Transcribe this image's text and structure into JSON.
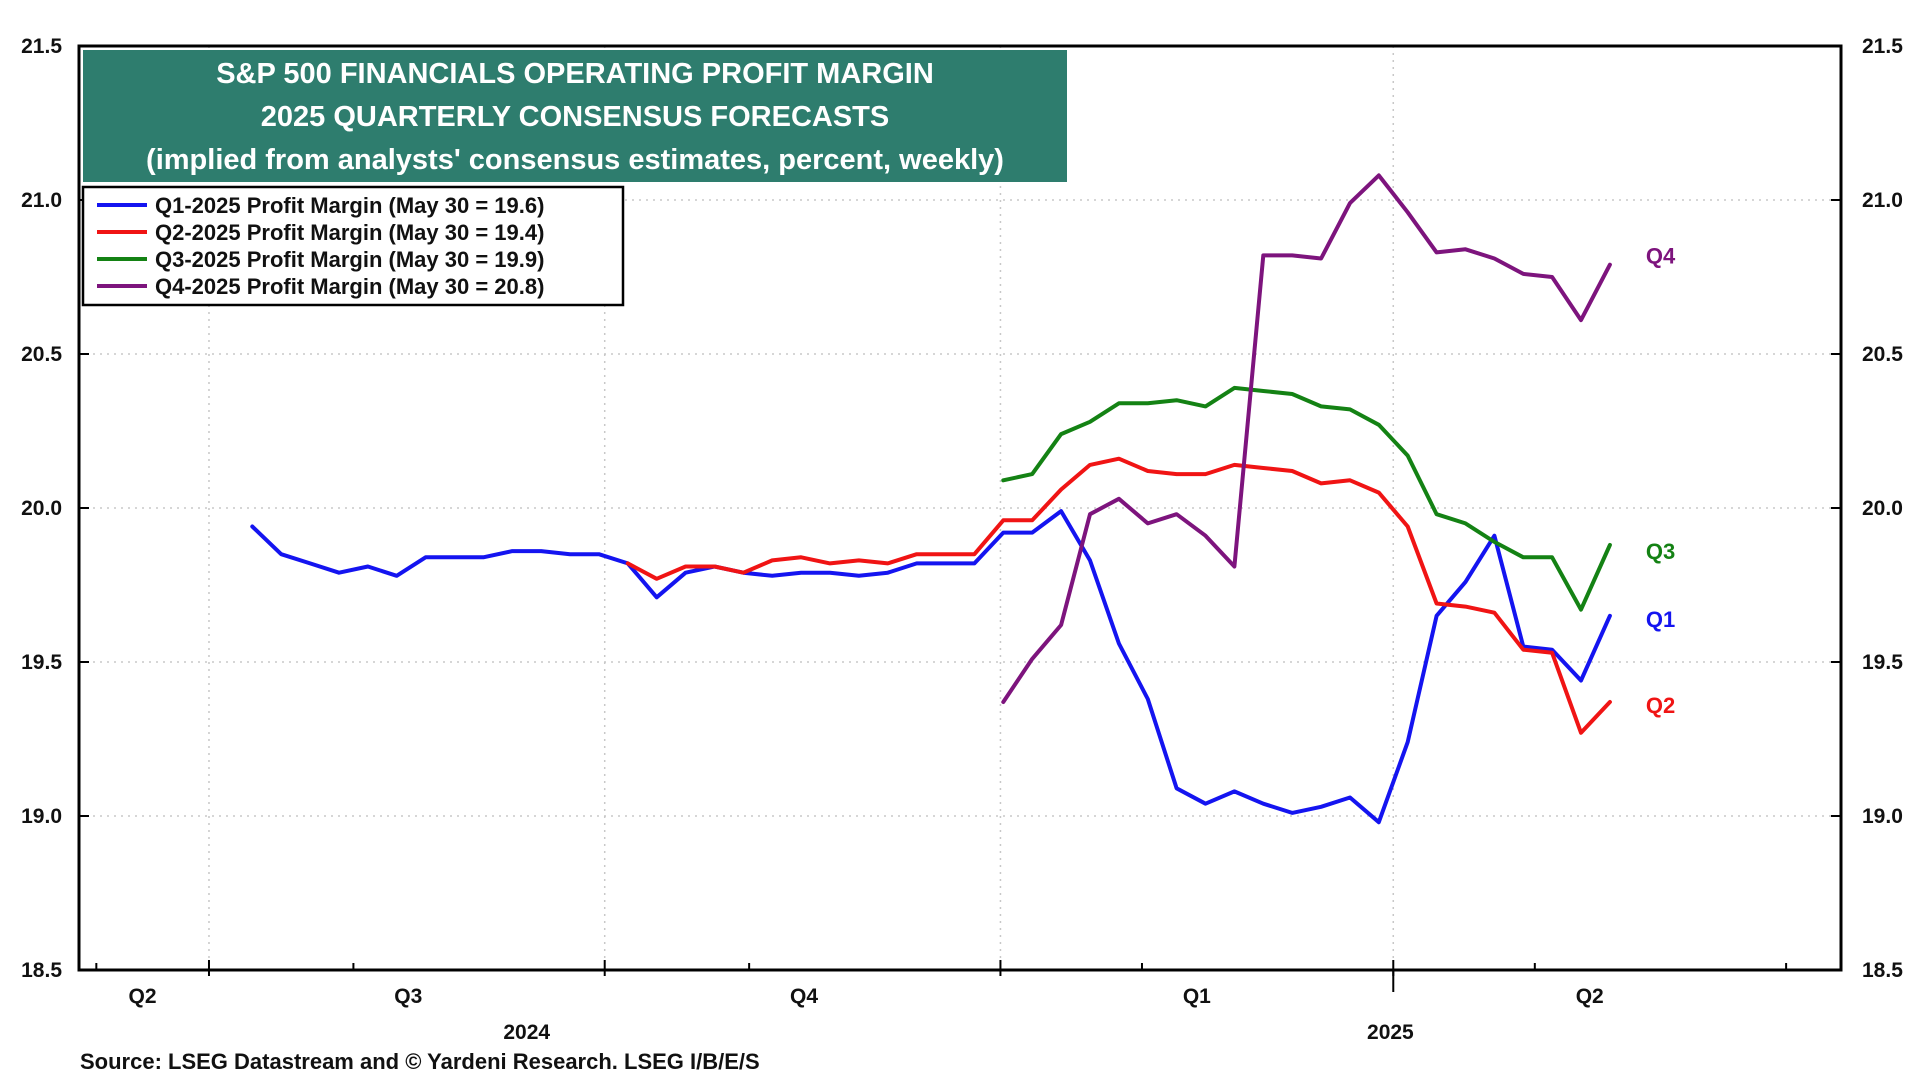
{
  "chart_data": {
    "type": "line",
    "title_lines": [
      "S&P 500 FINANCIALS OPERATING PROFIT MARGIN",
      "2025 QUARTERLY CONSENSUS FORECASTS",
      "(implied from analysts' consensus estimates, percent, weekly)"
    ],
    "title_bg_color": "#2e7d6e",
    "ylim": [
      18.5,
      21.5
    ],
    "y_ticks": [
      "21.5",
      "21.0",
      "20.5",
      "20.0",
      "19.5",
      "19.0",
      "18.5"
    ],
    "y_tick_values": [
      21.5,
      21.0,
      20.5,
      20.0,
      19.5,
      19.0,
      18.5
    ],
    "x_range": [
      0,
      61
    ],
    "quarter_labels": [
      {
        "label": "Q2",
        "pos": 2.2
      },
      {
        "label": "Q3",
        "pos": 11.4
      },
      {
        "label": "Q4",
        "pos": 25.1
      },
      {
        "label": "Q1",
        "pos": 38.7
      },
      {
        "label": "Q2",
        "pos": 52.3
      }
    ],
    "quarter_boundaries": [
      4.5,
      18.2,
      31.9,
      45.5
    ],
    "year_labels": [
      {
        "label": "2024",
        "pos": 15.5
      },
      {
        "label": "2025",
        "pos": 45.4
      }
    ],
    "year_boundary": 45.5,
    "minor_ticks": [
      0.6,
      9.5,
      23.2,
      36.8,
      50.4,
      59.1
    ],
    "series": [
      {
        "name": "Q1-2025 Profit Margin (May 30 = 19.6)",
        "short": "Q1",
        "color": "#1414f0",
        "start": 6,
        "values": [
          19.94,
          19.85,
          19.82,
          19.79,
          19.81,
          19.78,
          19.84,
          19.84,
          19.84,
          19.86,
          19.86,
          19.85,
          19.85,
          19.82,
          19.71,
          19.79,
          19.81,
          19.79,
          19.78,
          19.79,
          19.79,
          19.78,
          19.79,
          19.82,
          19.82,
          19.82,
          19.92,
          19.92,
          19.99,
          19.83,
          19.56,
          19.38,
          19.09,
          19.04,
          19.08,
          19.04,
          19.01,
          19.03,
          19.06,
          18.98,
          19.24,
          19.65,
          19.76,
          19.91,
          19.55,
          19.54,
          19.44,
          19.65
        ]
      },
      {
        "name": "Q2-2025 Profit Margin (May 30 = 19.4)",
        "short": "Q2",
        "color": "#f01414",
        "start": 19,
        "values": [
          19.82,
          19.77,
          19.81,
          19.81,
          19.79,
          19.83,
          19.84,
          19.82,
          19.83,
          19.82,
          19.85,
          19.85,
          19.85,
          19.96,
          19.96,
          20.06,
          20.14,
          20.16,
          20.12,
          20.11,
          20.11,
          20.14,
          20.13,
          20.12,
          20.08,
          20.09,
          20.05,
          19.94,
          19.69,
          19.68,
          19.66,
          19.54,
          19.53,
          19.27,
          19.37
        ]
      },
      {
        "name": "Q3-2025 Profit Margin (May 30 = 19.9)",
        "short": "Q3",
        "color": "#148214",
        "start": 32,
        "values": [
          20.09,
          20.11,
          20.24,
          20.28,
          20.34,
          20.34,
          20.35,
          20.33,
          20.39,
          20.38,
          20.37,
          20.33,
          20.32,
          20.27,
          20.17,
          19.98,
          19.95,
          19.89,
          19.84,
          19.84,
          19.67,
          19.88
        ]
      },
      {
        "name": "Q4-2025 Profit Margin (May 30 = 20.8)",
        "short": "Q4",
        "color": "#7d147d",
        "start": 32,
        "values": [
          19.37,
          19.51,
          19.62,
          19.98,
          20.03,
          19.95,
          19.98,
          19.91,
          19.81,
          20.82,
          20.82,
          20.81,
          20.99,
          21.08,
          20.96,
          20.83,
          20.84,
          20.81,
          20.76,
          20.75,
          20.61,
          20.79
        ]
      }
    ],
    "end_labels": [
      {
        "text": "Q4",
        "color": "#7d147d",
        "y": 20.82
      },
      {
        "text": "Q3",
        "color": "#148214",
        "y": 19.86
      },
      {
        "text": "Q1",
        "color": "#1414f0",
        "y": 19.64
      },
      {
        "text": "Q2",
        "color": "#f01414",
        "y": 19.36
      }
    ],
    "source": "Source: LSEG Datastream and © Yardeni Research. LSEG I/B/E/S"
  }
}
